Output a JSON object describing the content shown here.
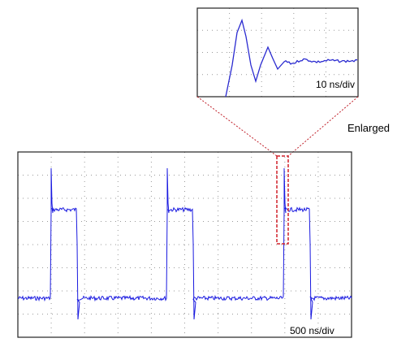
{
  "inset": {
    "label": "10 ns/div"
  },
  "callout": {
    "label": "Enlarged"
  },
  "main": {
    "label": "500 ns/div"
  }
}
